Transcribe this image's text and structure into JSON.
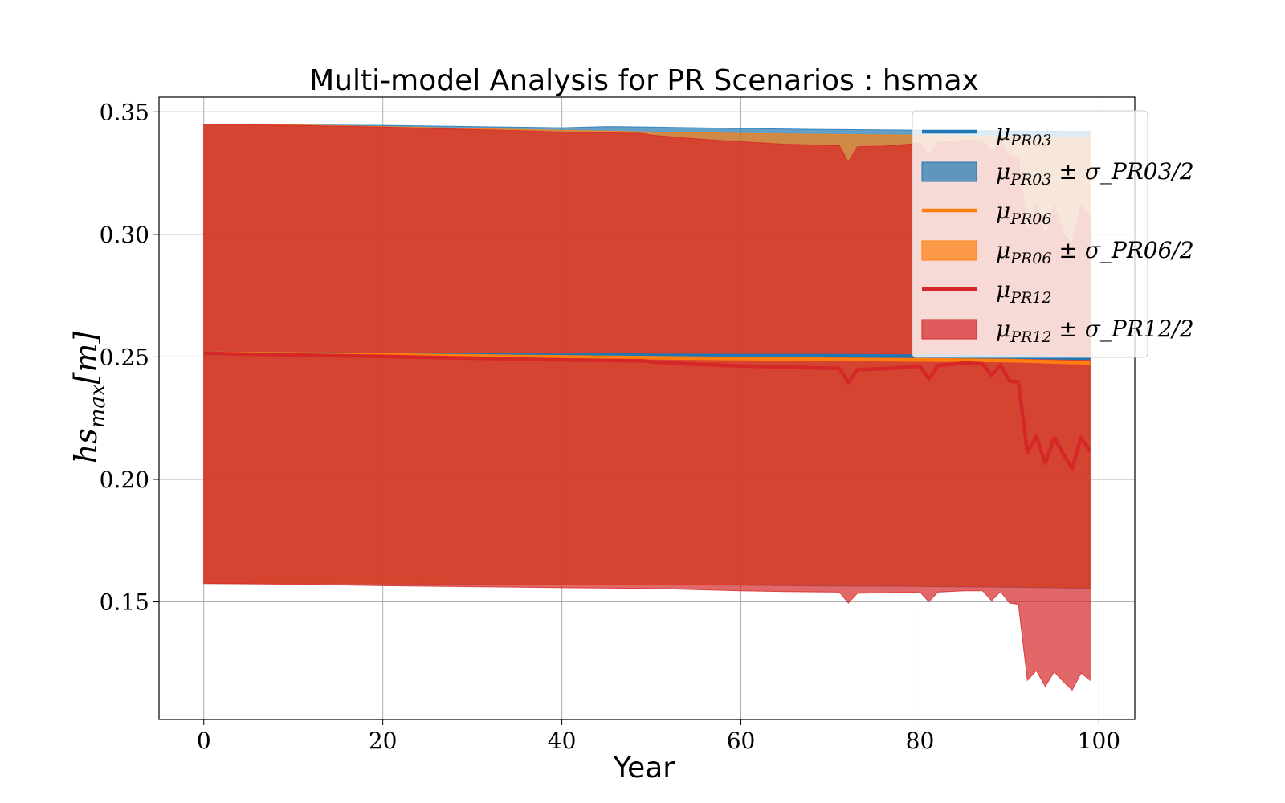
{
  "chart_data": {
    "type": "area",
    "title": "Multi-model Analysis for PR Scenarios : hsmax",
    "xlabel": "Year",
    "ylabel": "hs_max[m]",
    "xlim": [
      -5,
      104
    ],
    "ylim": [
      0.102,
      0.356
    ],
    "xticks": [
      0,
      20,
      40,
      60,
      80,
      100
    ],
    "yticks": [
      0.15,
      0.2,
      0.25,
      0.3,
      0.35
    ],
    "xtick_labels": [
      "0",
      "20",
      "40",
      "60",
      "80",
      "100"
    ],
    "ytick_labels": [
      "0.15",
      "0.20",
      "0.25",
      "0.30",
      "0.35"
    ],
    "grid": true,
    "legend_position": "top-right",
    "series": [
      {
        "name": "μ_PR03",
        "band_name": "μ_PR03 ± σ_PR03/2",
        "color": "#1f77b4",
        "band_color": "#1f77b4",
        "band_opacity": 0.7,
        "x": [
          0,
          10,
          20,
          30,
          40,
          45,
          50,
          60,
          70,
          80,
          90,
          99
        ],
        "mean": [
          0.2515,
          0.2512,
          0.251,
          0.2508,
          0.2506,
          0.2508,
          0.2506,
          0.2505,
          0.2505,
          0.2503,
          0.25,
          0.2495
        ],
        "upper": [
          0.345,
          0.3447,
          0.3445,
          0.344,
          0.3435,
          0.344,
          0.3438,
          0.3432,
          0.3428,
          0.3425,
          0.3422,
          0.342
        ],
        "lower": [
          0.1575,
          0.1575,
          0.1573,
          0.1572,
          0.157,
          0.157,
          0.157,
          0.1568,
          0.1565,
          0.1563,
          0.156,
          0.1555
        ]
      },
      {
        "name": "μ_PR06",
        "band_name": "μ_PR06 ± σ_PR06/2",
        "color": "#ff7f0e",
        "band_color": "#ff7f0e",
        "band_opacity": 0.7,
        "x": [
          0,
          10,
          20,
          30,
          40,
          50,
          60,
          70,
          80,
          90,
          99
        ],
        "mean": [
          0.2515,
          0.2512,
          0.2508,
          0.2504,
          0.25,
          0.2497,
          0.2493,
          0.249,
          0.2488,
          0.2485,
          0.2475
        ],
        "upper": [
          0.345,
          0.3447,
          0.344,
          0.3432,
          0.3425,
          0.3418,
          0.3412,
          0.3408,
          0.3405,
          0.34,
          0.3395
        ],
        "lower": [
          0.1575,
          0.1575,
          0.1574,
          0.1573,
          0.1572,
          0.1571,
          0.157,
          0.1568,
          0.1566,
          0.1563,
          0.1558
        ]
      },
      {
        "name": "μ_PR12",
        "band_name": "μ_PR12 ± σ_PR12/2",
        "color": "#d62728",
        "band_color": "#d62728",
        "band_opacity": 0.7,
        "x": [
          0,
          10,
          20,
          30,
          40,
          49,
          50,
          55,
          60,
          65,
          71,
          72,
          73,
          76,
          80,
          81,
          82,
          85,
          87,
          88,
          89,
          90,
          91,
          92,
          93,
          94,
          95,
          96,
          97,
          98,
          99
        ],
        "mean": [
          0.2515,
          0.2508,
          0.2502,
          0.2495,
          0.2488,
          0.2484,
          0.248,
          0.247,
          0.2463,
          0.2458,
          0.2453,
          0.2395,
          0.2448,
          0.2452,
          0.2462,
          0.241,
          0.2465,
          0.2475,
          0.2472,
          0.2425,
          0.2468,
          0.2402,
          0.2398,
          0.211,
          0.2175,
          0.2065,
          0.217,
          0.2105,
          0.2045,
          0.217,
          0.2115
        ],
        "upper": [
          0.345,
          0.3445,
          0.3438,
          0.3428,
          0.3418,
          0.3412,
          0.3405,
          0.339,
          0.3378,
          0.3368,
          0.3362,
          0.3295,
          0.3358,
          0.336,
          0.3372,
          0.3325,
          0.3375,
          0.3385,
          0.3382,
          0.3338,
          0.3378,
          0.332,
          0.3315,
          0.301,
          0.3125,
          0.2995,
          0.312,
          0.3005,
          0.296,
          0.312,
          0.3075
        ],
        "lower": [
          0.1575,
          0.1572,
          0.1566,
          0.1562,
          0.1558,
          0.1555,
          0.1555,
          0.155,
          0.1545,
          0.1542,
          0.154,
          0.1495,
          0.1535,
          0.1537,
          0.154,
          0.15,
          0.154,
          0.1545,
          0.1545,
          0.1505,
          0.1542,
          0.1495,
          0.149,
          0.118,
          0.122,
          0.1155,
          0.1215,
          0.1175,
          0.114,
          0.121,
          0.118
        ]
      }
    ]
  }
}
